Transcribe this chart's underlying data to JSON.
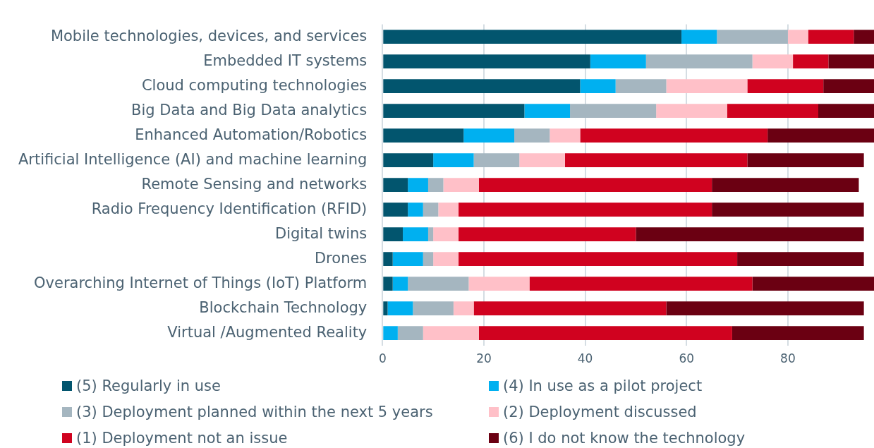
{
  "chart_data": {
    "type": "bar",
    "orientation": "horizontal",
    "stacked": true,
    "categories": [
      "Mobile technologies, devices, and services",
      "Embedded IT systems",
      "Cloud computing technologies",
      "Big Data and Big Data analytics",
      "Enhanced Automation/Robotics",
      "Artificial Intelligence (AI) and machine learning",
      "Remote Sensing and networks",
      "Radio Frequency Identification (RFID)",
      "Digital twins",
      "Drones",
      "Overarching Internet of Things (IoT) Platform",
      "Blockchain Technology",
      "Virtual /Augmented Reality"
    ],
    "series": [
      {
        "name": "(5) Regularly in use",
        "color": "#02556e",
        "values": [
          59,
          41,
          39,
          28,
          16,
          10,
          5,
          5,
          4,
          2,
          2,
          1,
          0
        ]
      },
      {
        "name": "(4) In use as a pilot project",
        "color": "#00b0f0",
        "values": [
          7,
          11,
          7,
          9,
          10,
          8,
          4,
          3,
          5,
          6,
          3,
          5,
          3
        ]
      },
      {
        "name": "(3) Deployment planned within the next 5 years",
        "color": "#a5b6c0",
        "values": [
          14,
          21,
          10,
          17,
          7,
          9,
          3,
          3,
          1,
          2,
          12,
          8,
          5
        ]
      },
      {
        "name": "(2) Deployment discussed",
        "color": "#ffc0c8",
        "values": [
          4,
          8,
          16,
          14,
          6,
          9,
          7,
          4,
          5,
          5,
          12,
          4,
          11
        ]
      },
      {
        "name": "(1) Deployment not an issue",
        "color": "#d0021f",
        "values": [
          9,
          7,
          15,
          18,
          37,
          36,
          46,
          50,
          35,
          55,
          44,
          38,
          50
        ]
      },
      {
        "name": "(6) I do not know the technology",
        "color": "#6b0012",
        "values": [
          4,
          9,
          10,
          11,
          21,
          23,
          29,
          30,
          45,
          25,
          24,
          39,
          26
        ]
      }
    ],
    "xlim": [
      0,
      97
    ],
    "xticks": [
      0,
      20,
      40,
      60,
      80
    ],
    "grid": "x",
    "legend": "bottom"
  }
}
